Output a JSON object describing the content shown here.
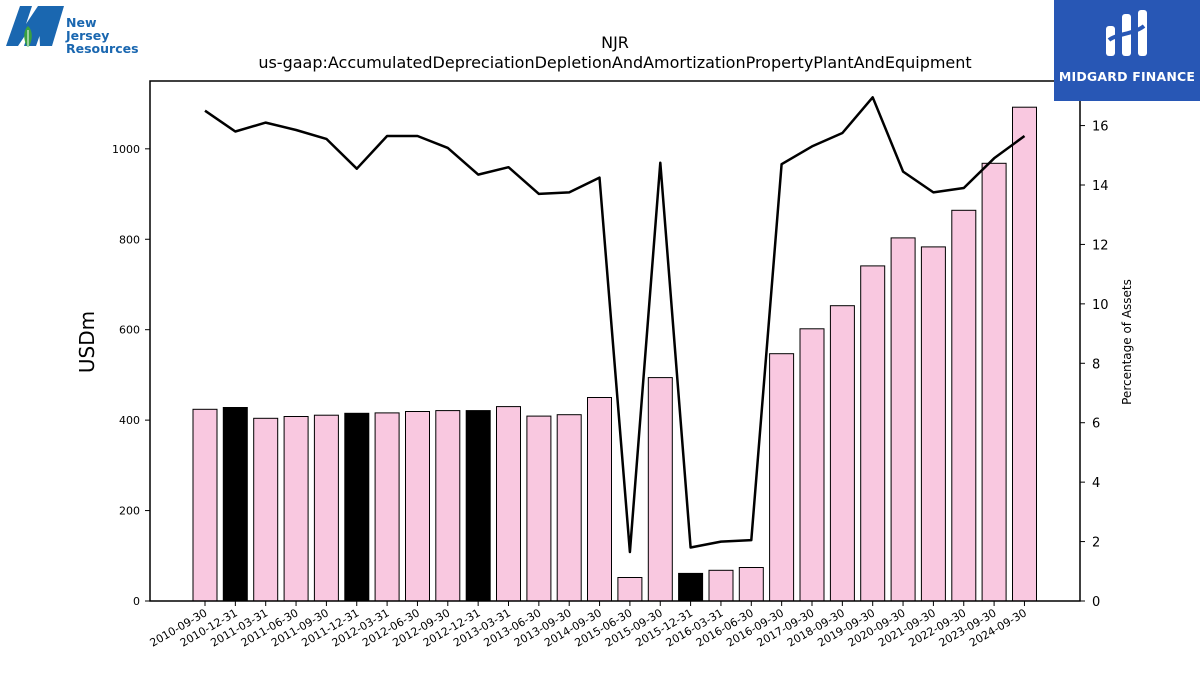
{
  "logos": {
    "company_line1": "New Jersey",
    "company_line2": "Resources",
    "publisher": "MIDGARD FINANCE"
  },
  "colors": {
    "bar_fill": "#f9c8e0",
    "bar_highlight": "#000000",
    "line": "#000000",
    "njr_blue": "#1a67b0",
    "njr_green": "#3aa040",
    "midgard_blue": "#2857b5"
  },
  "chart_data": {
    "type": "bar",
    "title": "NJR",
    "subtitle": "us-gaap:AccumulatedDepreciationDepletionAndAmortizationPropertyPlantAndEquipment",
    "ylabel": "USDm",
    "ylabel_right": "Percentage of Assets",
    "ylim": [
      0,
      1150
    ],
    "ylim_right": [
      0,
      17.5
    ],
    "yticks": [
      0,
      200,
      400,
      600,
      800,
      1000
    ],
    "yticks_right": [
      0,
      2,
      4,
      6,
      8,
      10,
      12,
      14,
      16
    ],
    "categories": [
      "2010-09-30",
      "2010-12-31",
      "2011-03-31",
      "2011-06-30",
      "2011-09-30",
      "2011-12-31",
      "2012-03-31",
      "2012-06-30",
      "2012-09-30",
      "2012-12-31",
      "2013-03-31",
      "2013-06-30",
      "2013-09-30",
      "2014-09-30",
      "2015-06-30",
      "2015-09-30",
      "2015-12-31",
      "2016-03-31",
      "2016-06-30",
      "2016-09-30",
      "2017-09-30",
      "2018-09-30",
      "2019-09-30",
      "2020-09-30",
      "2021-09-30",
      "2022-09-30",
      "2023-09-30",
      "2024-09-30"
    ],
    "values": [
      424,
      428,
      404,
      408,
      411,
      415,
      416,
      419,
      421,
      421,
      430,
      409,
      412,
      450,
      52,
      494,
      61,
      68,
      74,
      547,
      602,
      653,
      741,
      803,
      783,
      864,
      968,
      1092
    ],
    "highlighted": [
      false,
      true,
      false,
      false,
      false,
      true,
      false,
      false,
      false,
      true,
      false,
      false,
      false,
      false,
      false,
      false,
      true,
      false,
      false,
      false,
      false,
      false,
      false,
      false,
      false,
      false,
      false,
      false
    ],
    "line_values": [
      16.5,
      15.8,
      16.1,
      15.85,
      15.55,
      14.55,
      15.65,
      15.65,
      15.25,
      14.35,
      14.6,
      13.7,
      13.75,
      14.25,
      1.65,
      14.75,
      1.8,
      2.0,
      2.05,
      14.7,
      15.3,
      15.75,
      16.95,
      14.45,
      13.75,
      13.9,
      14.9,
      15.65
    ],
    "grid": false
  }
}
